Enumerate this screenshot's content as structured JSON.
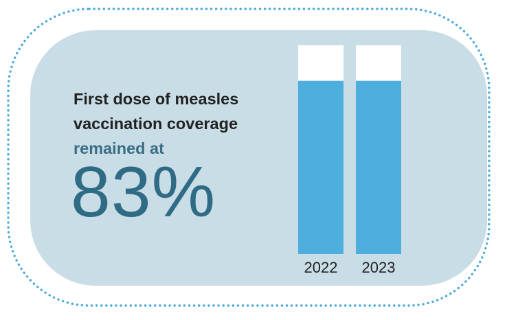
{
  "headline": {
    "line1": "First dose of measles",
    "line2": "vaccination coverage",
    "line3": "remained at",
    "value": "83%"
  },
  "colors": {
    "panel": "#c9dde6",
    "border_dots": "#4aa9dc",
    "bar_fill": "#4eaede",
    "bar_empty": "#ffffff",
    "value_text": "#2f6b85",
    "accent_text": "#3a6e86"
  },
  "chart_data": {
    "type": "bar",
    "categories": [
      "2022",
      "2023"
    ],
    "values": [
      83,
      83
    ],
    "ylim": [
      0,
      100
    ],
    "grid": false,
    "legend": "none"
  }
}
